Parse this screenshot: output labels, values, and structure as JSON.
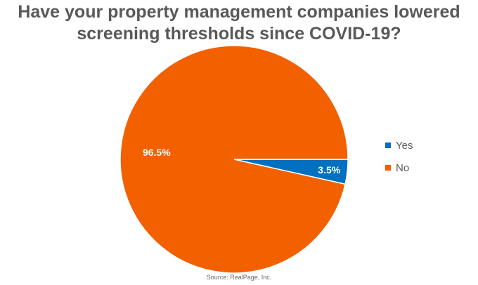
{
  "chart_data": {
    "type": "pie",
    "title_lines": [
      "Have your property management companies lowered",
      "screening thresholds since COVID-19?"
    ],
    "categories": [
      "Yes",
      "No"
    ],
    "values": [
      3.5,
      96.5
    ],
    "data_labels": [
      "3.5%",
      "96.5%"
    ],
    "colors": [
      "#0070C0",
      "#F26000"
    ],
    "legend_position": "right"
  },
  "source": "Source: RealPage, Inc."
}
